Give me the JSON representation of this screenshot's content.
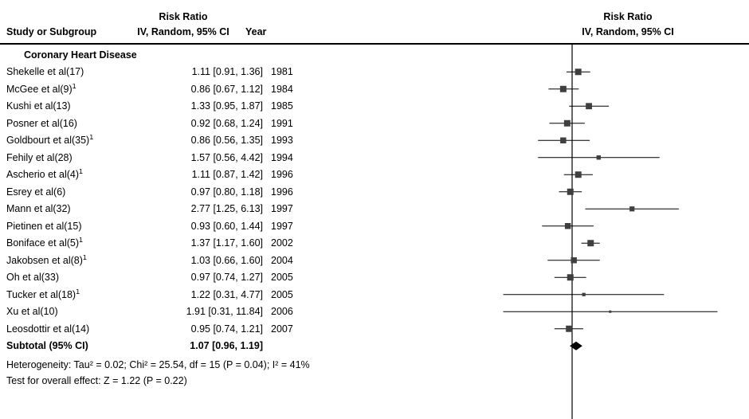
{
  "header": {
    "left_col": "Study or Subgroup",
    "effect_col_line1": "Risk Ratio",
    "effect_col_line2": "IV, Random, 95% CI",
    "year_col": "Year",
    "plot_col_line1": "Risk Ratio",
    "plot_col_line2": "IV, Random, 95% CI"
  },
  "colors": {
    "text": "#000000",
    "ci_line": "#000000",
    "marker": "#3f3f3f",
    "diamond": "#000000",
    "null_line": "#000000"
  },
  "chart_data": {
    "type": "forest",
    "x_scale": "log",
    "null_value": 1,
    "effect_measure": "Risk Ratio",
    "model": "IV, Random, 95% CI",
    "subgroup": "Coronary Heart Disease",
    "studies": [
      {
        "name": "Shekelle et al(17)",
        "sup": "",
        "est": 1.11,
        "lo": 0.91,
        "hi": 1.36,
        "ci_text": "1.11 [0.91, 1.36]",
        "year": "1981"
      },
      {
        "name": "McGee et al(9)",
        "sup": "1",
        "est": 0.86,
        "lo": 0.67,
        "hi": 1.12,
        "ci_text": "0.86 [0.67, 1.12]",
        "year": "1984"
      },
      {
        "name": "Kushi et al(13)",
        "sup": "",
        "est": 1.33,
        "lo": 0.95,
        "hi": 1.87,
        "ci_text": "1.33 [0.95, 1.87]",
        "year": "1985"
      },
      {
        "name": "Posner et al(16)",
        "sup": "",
        "est": 0.92,
        "lo": 0.68,
        "hi": 1.24,
        "ci_text": "0.92 [0.68, 1.24]",
        "year": "1991"
      },
      {
        "name": "Goldbourt et al(35)",
        "sup": "1",
        "est": 0.86,
        "lo": 0.56,
        "hi": 1.35,
        "ci_text": "0.86 [0.56, 1.35]",
        "year": "1993"
      },
      {
        "name": "Fehily et al(28)",
        "sup": "",
        "est": 1.57,
        "lo": 0.56,
        "hi": 4.42,
        "ci_text": "1.57 [0.56, 4.42]",
        "year": "1994"
      },
      {
        "name": "Ascherio et al(4)",
        "sup": "1",
        "est": 1.11,
        "lo": 0.87,
        "hi": 1.42,
        "ci_text": "1.11 [0.87, 1.42]",
        "year": "1996"
      },
      {
        "name": "Esrey et al(6)",
        "sup": "",
        "est": 0.97,
        "lo": 0.8,
        "hi": 1.18,
        "ci_text": "0.97 [0.80, 1.18]",
        "year": "1996"
      },
      {
        "name": "Mann et al(32)",
        "sup": "",
        "est": 2.77,
        "lo": 1.25,
        "hi": 6.13,
        "ci_text": "2.77 [1.25, 6.13]",
        "year": "1997"
      },
      {
        "name": "Pietinen et al(15)",
        "sup": "",
        "est": 0.93,
        "lo": 0.6,
        "hi": 1.44,
        "ci_text": "0.93 [0.60, 1.44]",
        "year": "1997"
      },
      {
        "name": "Boniface et al(5)",
        "sup": "1",
        "est": 1.37,
        "lo": 1.17,
        "hi": 1.6,
        "ci_text": "1.37 [1.17, 1.60]",
        "year": "2002"
      },
      {
        "name": "Jakobsen et al(8)",
        "sup": "1",
        "est": 1.03,
        "lo": 0.66,
        "hi": 1.6,
        "ci_text": "1.03 [0.66, 1.60]",
        "year": "2004"
      },
      {
        "name": "Oh et al(33)",
        "sup": "",
        "est": 0.97,
        "lo": 0.74,
        "hi": 1.27,
        "ci_text": "0.97 [0.74, 1.27]",
        "year": "2005"
      },
      {
        "name": "Tucker et al(18)",
        "sup": "1",
        "est": 1.22,
        "lo": 0.31,
        "hi": 4.77,
        "ci_text": "1.22 [0.31, 4.77]",
        "year": "2005"
      },
      {
        "name": "Xu et al(10)",
        "sup": "",
        "est": 1.91,
        "lo": 0.31,
        "hi": 11.84,
        "ci_text": "1.91 [0.31, 11.84]",
        "year": "2006"
      },
      {
        "name": "Leosdottir et al(14)",
        "sup": "",
        "est": 0.95,
        "lo": 0.74,
        "hi": 1.21,
        "ci_text": "0.95 [0.74, 1.21]",
        "year": "2007"
      }
    ],
    "subtotal": {
      "label": "Subtotal (95% CI)",
      "est": 1.07,
      "lo": 0.96,
      "hi": 1.19,
      "ci_text": "1.07 [0.96, 1.19]"
    },
    "footer": {
      "heterogeneity": "Heterogeneity: Tau² = 0.02; Chi² = 25.54, df = 15 (P = 0.04); I² = 41%",
      "overall_effect": "Test for overall effect: Z = 1.22 (P = 0.22)"
    }
  }
}
